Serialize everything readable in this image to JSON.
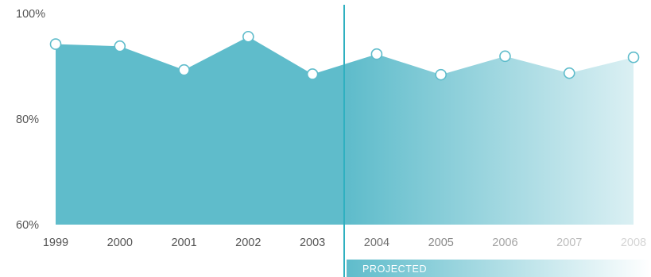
{
  "chart_data": {
    "type": "area",
    "title": "",
    "xlabel": "",
    "ylabel": "",
    "categories": [
      "1999",
      "2000",
      "2001",
      "2002",
      "2003",
      "2004",
      "2005",
      "2006",
      "2007",
      "2008"
    ],
    "values": [
      94.2,
      93.8,
      89.3,
      95.6,
      88.5,
      92.3,
      88.4,
      91.9,
      88.7,
      91.7
    ],
    "ylim": [
      60,
      100
    ],
    "yticks": [
      60,
      80,
      100
    ],
    "ytick_labels": [
      "60%",
      "80%",
      "100%"
    ],
    "projected_from": "2004",
    "projected_label": "PROJECTED",
    "grid": false,
    "colors": {
      "fill": "#5fbccb",
      "line": "#2fb0c0",
      "projected_bar": "#5fbccb",
      "marker_fill": "#ffffff",
      "marker_stroke": "#5fbccb",
      "tick_text": "#555555"
    }
  }
}
